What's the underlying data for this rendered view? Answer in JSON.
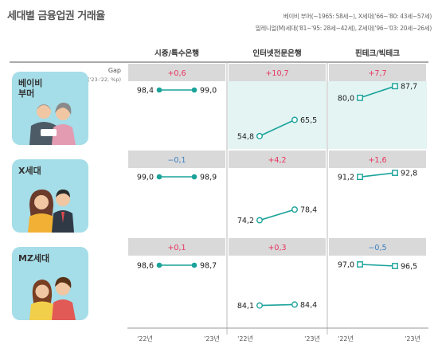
{
  "title": "세대별 금융업권 거래율",
  "legend": {
    "line1": "베이비 부머(~1965: 58세~), X세대('66~'80: 43세~57세)",
    "line2": "밀레니얼(M)세대('81~'95: 28세~42세), Z세대('96~'03: 20세~26세)"
  },
  "gap_label": "Gap",
  "gap_sub": "('23-'22, %p)",
  "columns": [
    "시중/특수은행",
    "인터넷전문은행",
    "핀테크/빅테크"
  ],
  "x_labels": [
    "'22년",
    "'23년"
  ],
  "generations": [
    {
      "label": "베이비\n부머"
    },
    {
      "label": "X세대"
    },
    {
      "label": "MZ세대"
    }
  ],
  "colors": {
    "teal": "#1aa39a",
    "highlight": "#e3f4f3",
    "gap_bg": "#d9d9d9",
    "positive": "#e8325d",
    "negative": "#3a7fc1",
    "badge": "#a5dde8"
  },
  "chart_data": {
    "type": "line",
    "title": "세대별 금융업권 거래율",
    "x": [
      "'22년",
      "'23년"
    ],
    "panels": [
      {
        "generation": "베이비 부머",
        "column": "시중/특수은행",
        "values": [
          98.4,
          99.0
        ],
        "value_labels": [
          "98,4",
          "99,0"
        ],
        "gap": "+0,6",
        "gap_sign": "positive",
        "marker": "circle-filled",
        "highlighted": false
      },
      {
        "generation": "베이비 부머",
        "column": "인터넷전문은행",
        "values": [
          54.8,
          65.5
        ],
        "value_labels": [
          "54,8",
          "65,5"
        ],
        "gap": "+10,7",
        "gap_sign": "positive",
        "marker": "circle-open",
        "highlighted": true
      },
      {
        "generation": "베이비 부머",
        "column": "핀테크/빅테크",
        "values": [
          80.0,
          87.7
        ],
        "value_labels": [
          "80,0",
          "87,7"
        ],
        "gap": "+7,7",
        "gap_sign": "positive",
        "marker": "square-open",
        "highlighted": true
      },
      {
        "generation": "X세대",
        "column": "시중/특수은행",
        "values": [
          99.0,
          98.9
        ],
        "value_labels": [
          "99,0",
          "98,9"
        ],
        "gap": "−0,1",
        "gap_sign": "negative",
        "marker": "circle-filled",
        "highlighted": false
      },
      {
        "generation": "X세대",
        "column": "인터넷전문은행",
        "values": [
          74.2,
          78.4
        ],
        "value_labels": [
          "74,2",
          "78,4"
        ],
        "gap": "+4,2",
        "gap_sign": "positive",
        "marker": "circle-open",
        "highlighted": false
      },
      {
        "generation": "X세대",
        "column": "핀테크/빅테크",
        "values": [
          91.2,
          92.8
        ],
        "value_labels": [
          "91,2",
          "92,8"
        ],
        "gap": "+1,6",
        "gap_sign": "positive",
        "marker": "square-open",
        "highlighted": false
      },
      {
        "generation": "MZ세대",
        "column": "시중/특수은행",
        "values": [
          98.6,
          98.7
        ],
        "value_labels": [
          "98,6",
          "98,7"
        ],
        "gap": "+0,1",
        "gap_sign": "positive",
        "marker": "circle-filled",
        "highlighted": false
      },
      {
        "generation": "MZ세대",
        "column": "인터넷전문은행",
        "values": [
          84.1,
          84.4
        ],
        "value_labels": [
          "84,1",
          "84,4"
        ],
        "gap": "+0,3",
        "gap_sign": "positive",
        "marker": "circle-open",
        "highlighted": false
      },
      {
        "generation": "MZ세대",
        "column": "핀테크/빅테크",
        "values": [
          97.0,
          96.5
        ],
        "value_labels": [
          "97,0",
          "96,5"
        ],
        "gap": "−0,5",
        "gap_sign": "negative",
        "marker": "square-open",
        "highlighted": false
      }
    ]
  }
}
